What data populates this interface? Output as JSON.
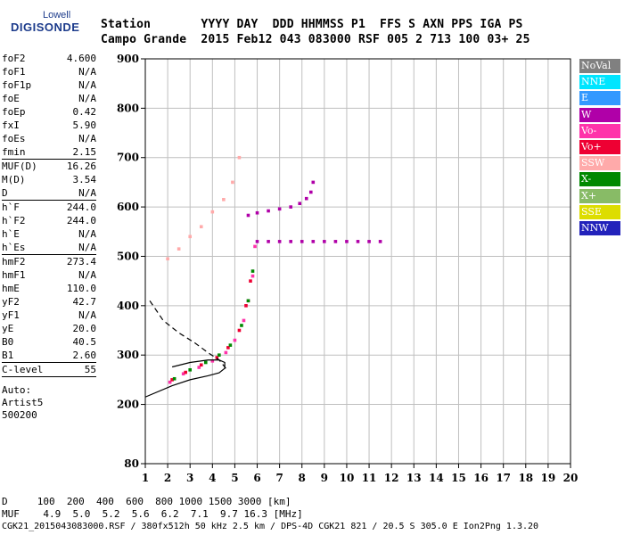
{
  "logo": {
    "line1": "Lowell",
    "line2": "DIGISONDE"
  },
  "header": {
    "labels": "Station       YYYY DAY  DDD HHMMSS P1  FFS S AXN PPS IGA PS",
    "values": "Campo Grande  2015 Feb12 043 083000 RSF 005 2 713 100 03+ 25"
  },
  "params": [
    {
      "name": "foF2",
      "value": "4.600"
    },
    {
      "name": "foF1",
      "value": "N/A"
    },
    {
      "name": "foF1p",
      "value": "N/A"
    },
    {
      "name": "foE",
      "value": "N/A"
    },
    {
      "name": "foEp",
      "value": "0.42"
    },
    {
      "name": "fxI",
      "value": "5.90"
    },
    {
      "name": "foEs",
      "value": "N/A"
    },
    {
      "name": "fmin",
      "value": "2.15"
    },
    {
      "name": "MUF(D)",
      "value": "16.26"
    },
    {
      "name": "M(D)",
      "value": "3.54"
    },
    {
      "name": "D",
      "value": "N/A"
    },
    {
      "name": "h`F",
      "value": "244.0"
    },
    {
      "name": "h`F2",
      "value": "244.0"
    },
    {
      "name": "h`E",
      "value": "N/A"
    },
    {
      "name": "h`Es",
      "value": "N/A"
    },
    {
      "name": "hmF2",
      "value": "273.4"
    },
    {
      "name": "hmF1",
      "value": "N/A"
    },
    {
      "name": "hmE",
      "value": "110.0"
    },
    {
      "name": "yF2",
      "value": "42.7"
    },
    {
      "name": "yF1",
      "value": "N/A"
    },
    {
      "name": "yE",
      "value": "20.0"
    },
    {
      "name": "B0",
      "value": "40.5"
    },
    {
      "name": "B1",
      "value": "2.60"
    },
    {
      "name": "C-level",
      "value": "55"
    }
  ],
  "notes": [
    "Auto:",
    "Artist5",
    "500200"
  ],
  "legend": [
    {
      "label": "NoVal",
      "color": "#808080"
    },
    {
      "label": "NNE",
      "color": "#00e5ff"
    },
    {
      "label": "E",
      "color": "#3399ff"
    },
    {
      "label": "W",
      "color": "#b000a8"
    },
    {
      "label": "Vo-",
      "color": "#ff33aa"
    },
    {
      "label": "Vo+",
      "color": "#ee0033"
    },
    {
      "label": "SSW",
      "color": "#ffaaaa"
    },
    {
      "label": "X-",
      "color": "#008800"
    },
    {
      "label": "X+",
      "color": "#88bb66"
    },
    {
      "label": "SSE",
      "color": "#dddd00"
    },
    {
      "label": "NNW",
      "color": "#2222bb"
    }
  ],
  "footer": {
    "distance_row": "D     100  200  400  600  800 1000 1500 3000 [km]",
    "muf_row": "MUF    4.9  5.0  5.2  5.6  6.2  7.1  9.7 16.3 [MHz]",
    "info_row": "CGK21_2015043083000.RSF / 380fx512h 50 kHz 2.5 km / DPS-4D CGK21 821 / 20.5 S 305.0 E Ion2Png 1.3.20"
  },
  "chart_data": {
    "type": "scatter",
    "xlim": [
      1,
      20
    ],
    "ylim": [
      80,
      900
    ],
    "x_ticks": [
      1,
      2,
      3,
      4,
      5,
      6,
      7,
      8,
      9,
      10,
      11,
      12,
      13,
      14,
      15,
      16,
      17,
      18,
      19,
      20
    ],
    "y_ticks": [
      80,
      200,
      300,
      400,
      500,
      600,
      700,
      800,
      900
    ],
    "grid": true,
    "series": [
      {
        "kind": "points",
        "color": "#b000a8",
        "x": [
          5.6,
          6.0,
          6.5,
          7.0,
          7.5,
          7.9,
          8.2,
          8.4,
          8.5
        ],
        "y": [
          583,
          588,
          592,
          596,
          600,
          607,
          617,
          630,
          650
        ]
      },
      {
        "kind": "points",
        "color": "#ffaaaa",
        "x": [
          2.0,
          2.5,
          3.0,
          3.5,
          4.0,
          4.5,
          4.9,
          5.2
        ],
        "y": [
          495,
          515,
          540,
          560,
          590,
          615,
          650,
          700
        ]
      },
      {
        "kind": "points",
        "color": "#ff33aa",
        "x": [
          2.1,
          2.7,
          3.4,
          4.0,
          4.6,
          5.0,
          5.4,
          5.6,
          5.8,
          5.9
        ],
        "y": [
          245,
          262,
          275,
          288,
          305,
          330,
          370,
          410,
          460,
          520
        ]
      },
      {
        "kind": "points",
        "color": "#ee0033",
        "x": [
          2.2,
          2.8,
          3.5,
          4.2,
          4.7,
          5.2,
          5.5,
          5.7
        ],
        "y": [
          250,
          265,
          280,
          295,
          315,
          350,
          400,
          450
        ]
      },
      {
        "kind": "points",
        "color": "#008800",
        "x": [
          2.3,
          3.0,
          3.7,
          4.3,
          4.8,
          5.3,
          5.6,
          5.8
        ],
        "y": [
          252,
          270,
          285,
          300,
          320,
          360,
          410,
          470
        ]
      },
      {
        "kind": "points",
        "color": "#b000a8",
        "x": [
          6.0,
          6.5,
          7.0,
          7.5,
          8.0,
          8.5,
          9.0,
          9.5,
          10.0,
          10.5,
          11.0,
          11.5
        ],
        "y": [
          530,
          530,
          530,
          530,
          530,
          530,
          530,
          530,
          530,
          530,
          530,
          530
        ]
      },
      {
        "kind": "line",
        "style": "solid",
        "color": "#000000",
        "x": [
          1.0,
          2.2,
          3.0,
          3.8,
          4.3,
          4.55,
          4.55,
          4.3,
          3.8,
          3.0,
          2.2
        ],
        "y": [
          215,
          238,
          250,
          258,
          264,
          273,
          285,
          290,
          290,
          285,
          276
        ]
      },
      {
        "kind": "line",
        "style": "dashed",
        "color": "#000000",
        "x": [
          1.2,
          1.8,
          2.5,
          3.2,
          3.8,
          4.3,
          4.6
        ],
        "y": [
          410,
          370,
          345,
          325,
          305,
          290,
          273
        ]
      }
    ]
  }
}
